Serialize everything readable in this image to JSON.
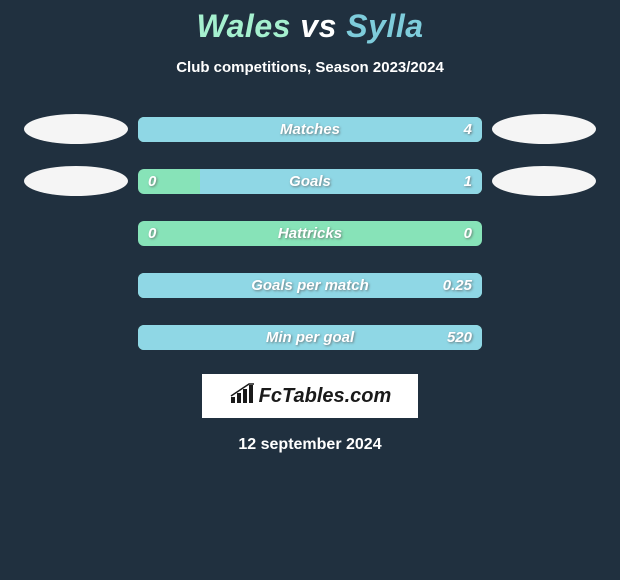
{
  "header": {
    "player1": "Wales",
    "vs": "vs",
    "player2": "Sylla",
    "player1_color": "#a5f0cf",
    "player2_color": "#7eccdb"
  },
  "subtitle": "Club competitions, Season 2023/2024",
  "barWidth": 344,
  "colors": {
    "page_bg": "#20303f",
    "bar_left_bg": "#87e3b8",
    "bar_right_bg": "#8fd7e5",
    "avatar_bg": "#f5f5f5",
    "text": "#ffffff",
    "shadow": "rgba(90,90,90,0.7)"
  },
  "rows": [
    {
      "label": "Matches",
      "left": "",
      "right": "4",
      "fill_pct": 100,
      "show_avatars": true
    },
    {
      "label": "Goals",
      "left": "0",
      "right": "1",
      "fill_pct": 82,
      "show_avatars": true
    },
    {
      "label": "Hattricks",
      "left": "0",
      "right": "0",
      "fill_pct": 0,
      "show_avatars": false
    },
    {
      "label": "Goals per match",
      "left": "",
      "right": "0.25",
      "fill_pct": 100,
      "show_avatars": false
    },
    {
      "label": "Min per goal",
      "left": "",
      "right": "520",
      "fill_pct": 100,
      "show_avatars": false
    }
  ],
  "logo": {
    "text": "FcTables.com",
    "icon_color": "#1a1a1a",
    "bg": "#ffffff"
  },
  "date": "12 september 2024"
}
